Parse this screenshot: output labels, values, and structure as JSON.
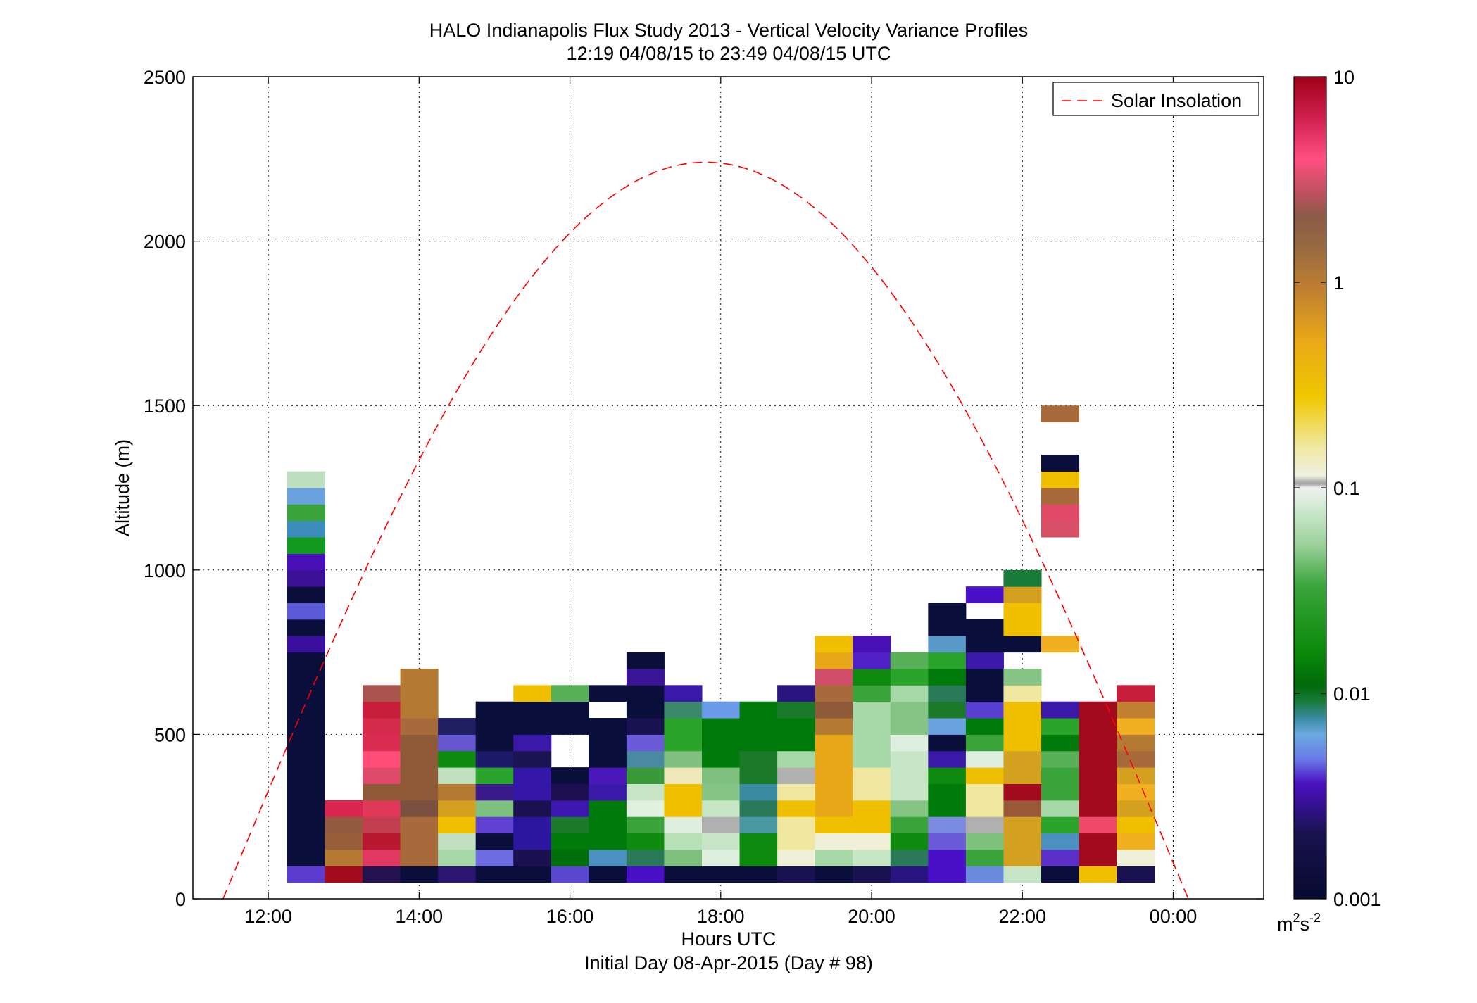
{
  "chart_data": {
    "type": "heatmap",
    "title": "HALO Indianapolis Flux Study 2013 - Vertical Velocity Variance Profiles",
    "subtitle": "12:19 04/08/15 to 23:49 04/08/15  UTC",
    "xlabel": "Hours UTC",
    "xlabel2": "Initial Day 08-Apr-2015 (Day # 98)",
    "ylabel": "Altitude (m)",
    "xlim": [
      11,
      25.2
    ],
    "ylim": [
      0,
      2500
    ],
    "x_ticks": [
      {
        "value": 12,
        "label": "12:00"
      },
      {
        "value": 14,
        "label": "14:00"
      },
      {
        "value": 16,
        "label": "16:00"
      },
      {
        "value": 18,
        "label": "18:00"
      },
      {
        "value": 20,
        "label": "20:00"
      },
      {
        "value": 22,
        "label": "22:00"
      },
      {
        "value": 24,
        "label": "00:00"
      }
    ],
    "y_ticks": [
      {
        "value": 0,
        "label": "0"
      },
      {
        "value": 500,
        "label": "500"
      },
      {
        "value": 1000,
        "label": "1000"
      },
      {
        "value": 1500,
        "label": "1500"
      },
      {
        "value": 2000,
        "label": "2000"
      },
      {
        "value": 2500,
        "label": "2500"
      }
    ],
    "grid": true,
    "legend": {
      "position": "top-right",
      "entries": [
        {
          "label": "Solar Insolation",
          "color": "#ff0000",
          "style": "dashed"
        }
      ]
    },
    "colorbar": {
      "scale": "log",
      "range": [
        0.001,
        10
      ],
      "ticks": [
        {
          "value": 10,
          "label": "10"
        },
        {
          "value": 1,
          "label": "1"
        },
        {
          "value": 0.1,
          "label": "0.1"
        },
        {
          "value": 0.01,
          "label": "0.01"
        },
        {
          "value": 0.001,
          "label": "0.001"
        }
      ],
      "unit_base": "m",
      "unit_sup1": "2",
      "unit_mid": "s",
      "unit_sup2": "-2"
    },
    "bin_width_hours": 0.5,
    "bin_height_m": 50,
    "series": [
      {
        "name": "Solar Insolation",
        "peak_hour": 17.8,
        "peak_altitude": 2240,
        "zero_hours": [
          11.4,
          24.2
        ]
      }
    ],
    "columns": [
      {
        "x": 12.5,
        "bottom": 50,
        "colors": [
          "#5c3bd1",
          "#0a0e3a",
          "#0a0e3a",
          "#0a0e3a",
          "#0a0e3a",
          "#0a0e3a",
          "#0a0e3a",
          "#0a0e3a",
          "#0a0e3a",
          "#0a0e3a",
          "#0a0e3a",
          "#0a0e3a",
          "#0a0e3a",
          "#0a0e3a",
          "#3a0f9e",
          "#0a0e3a",
          "#5c5ad8",
          "#0a0e3a",
          "#3b1296",
          "#4a10b8",
          "#119a1f",
          "#3c8cbc",
          "#3aa43a",
          "#6aa2e0",
          "#bfe0c0"
        ]
      },
      {
        "x": 13.0,
        "bottom": 50,
        "colors": [
          "#a30a1e",
          "#b47a33",
          "#975e3a",
          "#935a42",
          "#d92650"
        ]
      },
      {
        "x": 13.5,
        "bottom": 50,
        "colors": [
          "#221250",
          "#e03860",
          "#b81830",
          "#c03e4e",
          "#e03858",
          "#8e5a38",
          "#e04a6a",
          "#fe4d78",
          "#da2c50",
          "#d62a4c",
          "#c81e3c",
          "#a8544c"
        ]
      },
      {
        "x": 14.0,
        "bottom": 50,
        "colors": [
          "#0a0e3a",
          "#a86a3a",
          "#a86a3a",
          "#a86a3a",
          "#7a5040",
          "#8e5a38",
          "#8e5a38",
          "#8e5a38",
          "#8e5a38",
          "#a86a3a",
          "#b47a33",
          "#b47a33",
          "#b47a33"
        ]
      },
      {
        "x": 14.5,
        "bottom": 50,
        "colors": [
          "#2a1670",
          "#a6d8a8",
          "#c0e0c0",
          "#f0c000",
          "#d4a020",
          "#b47a33",
          "#c0e0c0",
          "#0e8a0e",
          "#6656d0",
          "#1e1e60"
        ]
      },
      {
        "x": 15.0,
        "bottom": 50,
        "colors": [
          "#0a0e3a",
          "#6c6ce0",
          "#0a0e3a",
          "#6040d0",
          "#7ec07e",
          "#3a1a8a",
          "#2aa42a",
          "#1e1a6a",
          "#0a0e3a",
          "#0a0e3a",
          "#0a0e3a"
        ]
      },
      {
        "x": 15.5,
        "bottom": 50,
        "colors": [
          "#0a0e3a",
          "#1a1050",
          "#2c16a0",
          "#2c16a0",
          "#1a1250",
          "#3416a8",
          "#3416a8",
          "#1a1450",
          "#3a18a8",
          "#0a0e3a",
          "#0a0e3a",
          "#f0c000"
        ]
      },
      {
        "x": 16.0,
        "bottom": 50,
        "colors": [
          "#5a48d0",
          "#006e0a",
          "#007a0a",
          "#1a7a2a",
          "#3e16b0",
          "#1c1050",
          "#0a0e3a",
          null,
          null,
          "#0a0e3a",
          "#0a0e3a",
          "#58b058"
        ]
      },
      {
        "x": 16.5,
        "bottom": 50,
        "colors": [
          "#0a0e3a",
          "#4a90c0",
          "#007a0a",
          "#007a0a",
          "#007a0a",
          "#3a18a8",
          "#4a18b8",
          "#0a0e3a",
          "#0a0e3a",
          "#0a0e3a",
          null,
          "#0a0e3a"
        ]
      },
      {
        "x": 17.0,
        "bottom": 50,
        "colors": [
          "#4a10c8",
          "#2a7a5a",
          "#0e8a0e",
          "#3aa43a",
          "#dff0df",
          "#c6e6c6",
          "#3a9a3a",
          "#4a8aa0",
          "#6a5ad8",
          "#1a1250",
          "#0a0e3a",
          "#0a0e3a",
          "#3a1496",
          "#0a0e3a"
        ]
      },
      {
        "x": 17.5,
        "bottom": 50,
        "colors": [
          "#0a0e3a",
          "#7ec07e",
          "#b6e0b6",
          "#dfefdf",
          "#f0c000",
          "#f0c000",
          "#f0e8b8",
          "#80c080",
          "#2aa42a",
          "#2aa42a",
          "#3a8a6a",
          "#3a18a8"
        ]
      },
      {
        "x": 18.0,
        "bottom": 50,
        "colors": [
          "#0a0e3a",
          "#dfefdf",
          "#c6e6c6",
          "#b0b0b0",
          "#c6e6c6",
          "#86c486",
          "#7ec07e",
          "#007a0a",
          "#007a0a",
          "#007a0a",
          "#6a9ae8"
        ]
      },
      {
        "x": 18.5,
        "bottom": 50,
        "colors": [
          "#0a0e3a",
          "#0e8a0e",
          "#0e8a0e",
          "#4a98a0",
          "#2a7a5a",
          "#3a8aa0",
          "#1a7a2a",
          "#1a7a2a",
          "#007a0a",
          "#007a0a",
          "#007a0a"
        ]
      },
      {
        "x": 19.0,
        "bottom": 50,
        "colors": [
          "#1a1250",
          "#f0f0d8",
          "#f0e8a0",
          "#f0e8a0",
          "#f0c000",
          "#f0e8a0",
          "#b0b0b0",
          "#a6d8a8",
          "#007a0a",
          "#007a0a",
          "#1a7a2a",
          "#2a1480"
        ]
      },
      {
        "x": 19.5,
        "bottom": 50,
        "colors": [
          "#0a0e3a",
          "#a6d8a8",
          "#f0f0d8",
          "#f0c000",
          "#e8a818",
          "#e8a818",
          "#e8a818",
          "#e8a818",
          "#e8a818",
          "#b47a33",
          "#8e5a38",
          "#a86a3a",
          "#d04e6a",
          "#e8a818",
          "#f0c000"
        ]
      },
      {
        "x": 20.0,
        "bottom": 50,
        "colors": [
          "#1a1250",
          "#c6e6c6",
          "#f0f0d8",
          "#f0c000",
          "#f0c000",
          "#f0e8a0",
          "#f0e8a0",
          "#a6d8a8",
          "#a6d8a8",
          "#a6d8a8",
          "#a6d8a8",
          "#3aa43a",
          "#0e8a0e",
          "#5020c8",
          "#4a10b8"
        ]
      },
      {
        "x": 20.5,
        "bottom": 50,
        "colors": [
          "#2a1480",
          "#2a7a5a",
          "#0e8a0e",
          "#3aa43a",
          "#86c486",
          "#c6e6c6",
          "#c6e6c6",
          "#c6e6c6",
          "#dfefdf",
          "#86c486",
          "#86c486",
          "#a6d8a8",
          "#2aa42a",
          "#58b058"
        ]
      },
      {
        "x": 21.0,
        "bottom": 50,
        "colors": [
          "#4a10c8",
          "#4a10c8",
          "#6a5ad8",
          "#7c8ce0",
          "#007a0a",
          "#007a0a",
          "#0e8a0e",
          "#3a18a8",
          "#0a0e3a",
          "#6aa2e0",
          "#1a7a2a",
          "#2a7a5a",
          "#007a0a",
          "#2aa42a",
          "#5a9ac8",
          "#0a0e3a",
          "#0a0e3a"
        ]
      },
      {
        "x": 21.5,
        "bottom": 50,
        "colors": [
          "#6a8ae0",
          "#3aa43a",
          "#7ec07e",
          "#b0b0b0",
          "#f0e8a0",
          "#f0e8a0",
          "#f0c000",
          "#dfefdf",
          "#3aa43a",
          "#007a0a",
          "#5a40d0",
          "#0a0e3a",
          "#0a0e3a",
          "#3a18a8",
          "#0a0e3a",
          "#0a0e3a",
          null,
          "#4a10c8"
        ]
      },
      {
        "x": 22.0,
        "bottom": 50,
        "colors": [
          "#c6e6c6",
          "#d4a020",
          "#d4a020",
          "#d4a020",
          "#9a5a3a",
          "#a30a1e",
          "#d4a020",
          "#d4a020",
          "#f0c000",
          "#f0c000",
          "#f0c000",
          "#f0e8a0",
          "#86c486",
          null,
          "#0a0e3a",
          "#f0c000",
          "#f0c000",
          "#d4a020",
          "#1a7a3a"
        ]
      },
      {
        "x": 22.5,
        "bottom": 50,
        "colors": [
          "#0a0e3a",
          "#5a30c8",
          "#4a90c0",
          "#2aa42a",
          "#a6d8a8",
          "#3aa43a",
          "#3aa43a",
          "#58b058",
          "#007a0a",
          "#2aa42a",
          "#3a18a8",
          null,
          null,
          null,
          "#f0b020"
        ]
      },
      {
        "x": 22.5,
        "bottom": 1100,
        "colors": [
          "#d85068",
          "#e04a66",
          "#a86a3a",
          "#f0c000",
          "#0a0e3a",
          null,
          null,
          "#a86a3a"
        ]
      },
      {
        "x": 23.0,
        "bottom": 50,
        "colors": [
          "#f0c000",
          "#a30a1e",
          "#a30a1e",
          "#f04a6a",
          "#a30a1e",
          "#a30a1e",
          "#a30a1e",
          "#a30a1e",
          "#a30a1e",
          "#a30a1e",
          "#a30a1e"
        ]
      },
      {
        "x": 23.5,
        "bottom": 50,
        "colors": [
          "#1a1250",
          "#f0f0d8",
          "#f0b020",
          "#f0c000",
          "#d4a020",
          "#f0b020",
          "#d4a020",
          "#a86a3a",
          "#b47a33",
          "#f0b020",
          "#c08030",
          "#c81e3c"
        ]
      }
    ]
  }
}
